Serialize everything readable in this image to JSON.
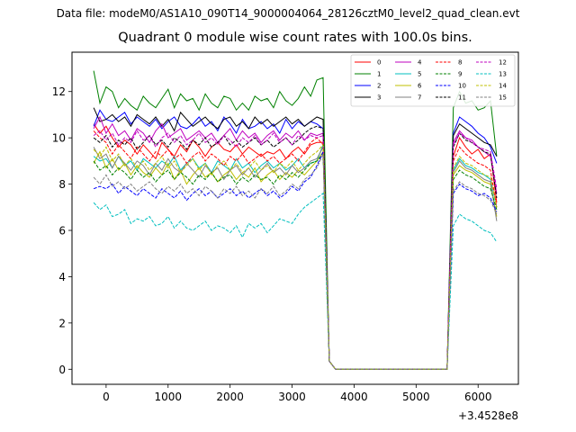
{
  "suptitle": "Data file: modeM0/AS1A10_090T14_9000004064_28126cztM0_level2_quad_clean.evt",
  "chart_data": {
    "type": "line",
    "title": "Quadrant 0 module wise count rates with 100.0s bins.",
    "xlabel": "",
    "ylabel": "",
    "x_offset_label": "+3.4528e8",
    "xlim": [
      -550,
      6650
    ],
    "ylim": [
      -0.65,
      13.7
    ],
    "xticks": [
      0,
      1000,
      2000,
      3000,
      4000,
      5000,
      6000
    ],
    "xtick_labels": [
      "0",
      "1000",
      "2000",
      "3000",
      "4000",
      "5000",
      "6000"
    ],
    "yticks": [
      0,
      2,
      4,
      6,
      8,
      10,
      12
    ],
    "ytick_labels": [
      "0",
      "2",
      "4",
      "6",
      "8",
      "10",
      "12"
    ],
    "grid": false,
    "legend_position": "top-right",
    "x": [
      -200,
      -100,
      0,
      100,
      200,
      300,
      400,
      500,
      600,
      700,
      800,
      900,
      1000,
      1100,
      1200,
      1300,
      1400,
      1500,
      1600,
      1700,
      1800,
      1900,
      2000,
      2100,
      2200,
      2300,
      2400,
      2500,
      2600,
      2700,
      2800,
      2900,
      3000,
      3100,
      3200,
      3300,
      3400,
      3500,
      3600,
      3700,
      3800,
      3900,
      4000,
      4100,
      4200,
      4300,
      4400,
      4500,
      4600,
      4700,
      4800,
      4900,
      5000,
      5100,
      5200,
      5300,
      5400,
      5500,
      5600,
      5700,
      5800,
      5900,
      6000,
      6100,
      6200,
      6300
    ],
    "series": [
      {
        "name": "0",
        "color": "#ff0000",
        "dashed": false,
        "values": [
          10.6,
          10.2,
          10.5,
          10.0,
          9.6,
          9.9,
          9.7,
          9.3,
          9.7,
          9.4,
          9.1,
          9.8,
          9.5,
          9.2,
          9.7,
          9.4,
          9.9,
          9.6,
          9.2,
          9.6,
          9.8,
          9.5,
          9.4,
          9.7,
          9.3,
          9.6,
          9.4,
          9.2,
          9.4,
          9.3,
          9.5,
          9.1,
          9.4,
          9.6,
          9.3,
          9.7,
          9.8,
          9.8,
          0.35,
          0,
          0,
          0,
          0,
          0,
          0,
          0,
          0,
          0,
          0,
          0,
          0,
          0,
          0,
          0,
          0,
          0,
          0,
          0,
          9.2,
          10.0,
          9.6,
          9.3,
          9.5,
          9.1,
          9.3,
          7.2
        ]
      },
      {
        "name": "1",
        "color": "#008000",
        "dashed": false,
        "values": [
          12.9,
          11.5,
          12.2,
          12.0,
          11.3,
          11.7,
          11.4,
          11.2,
          11.8,
          11.5,
          11.3,
          11.7,
          12.1,
          11.3,
          11.9,
          11.6,
          11.7,
          11.2,
          11.9,
          11.5,
          11.3,
          11.8,
          11.7,
          11.2,
          11.5,
          11.2,
          11.8,
          11.6,
          11.7,
          11.3,
          12.0,
          11.6,
          11.4,
          11.7,
          12.2,
          11.8,
          12.5,
          12.6,
          0.35,
          0,
          0,
          0,
          0,
          0,
          0,
          0,
          0,
          0,
          0,
          0,
          0,
          0,
          0,
          0,
          0,
          0,
          0,
          0,
          11.3,
          12.0,
          11.5,
          11.6,
          11.2,
          11.3,
          11.6,
          9.2
        ]
      },
      {
        "name": "2",
        "color": "#0000ff",
        "dashed": false,
        "values": [
          10.5,
          11.2,
          10.8,
          10.7,
          10.9,
          11.1,
          10.6,
          10.9,
          10.7,
          10.5,
          10.8,
          10.4,
          10.7,
          10.9,
          10.5,
          10.4,
          10.6,
          10.9,
          10.5,
          10.7,
          10.3,
          10.9,
          10.6,
          10.2,
          10.8,
          10.4,
          10.5,
          10.7,
          10.4,
          10.6,
          10.2,
          10.8,
          10.4,
          10.7,
          10.5,
          10.7,
          10.6,
          10.4,
          0.35,
          0,
          0,
          0,
          0,
          0,
          0,
          0,
          0,
          0,
          0,
          0,
          0,
          0,
          0,
          0,
          0,
          0,
          0,
          0,
          10.2,
          10.9,
          10.7,
          10.5,
          10.2,
          10.0,
          9.6,
          8.9
        ]
      },
      {
        "name": "3",
        "color": "#000000",
        "dashed": false,
        "values": [
          11.3,
          10.7,
          10.8,
          11.0,
          10.7,
          10.9,
          10.5,
          11.0,
          10.8,
          10.6,
          10.9,
          10.5,
          10.8,
          10.3,
          11.1,
          10.8,
          10.5,
          10.7,
          10.9,
          10.6,
          10.4,
          10.8,
          10.9,
          10.5,
          10.7,
          10.4,
          10.9,
          10.6,
          10.8,
          10.5,
          10.7,
          10.9,
          10.6,
          10.8,
          10.5,
          10.7,
          10.9,
          10.8,
          0.35,
          0,
          0,
          0,
          0,
          0,
          0,
          0,
          0,
          0,
          0,
          0,
          0,
          0,
          0,
          0,
          0,
          0,
          0,
          0,
          10.1,
          10.6,
          10.4,
          10.2,
          10.0,
          9.8,
          9.7,
          9.2
        ]
      },
      {
        "name": "4",
        "color": "#bf00bf",
        "dashed": false,
        "values": [
          10.4,
          10.9,
          10.2,
          10.6,
          10.1,
          10.3,
          9.9,
          10.4,
          10.2,
          9.8,
          10.3,
          10.6,
          10.0,
          10.2,
          10.4,
          9.9,
          10.1,
          10.3,
          10.0,
          10.2,
          9.8,
          10.1,
          10.4,
          9.9,
          10.3,
          10.0,
          10.2,
          9.8,
          10.1,
          10.3,
          9.9,
          10.2,
          10.0,
          10.3,
          9.9,
          10.2,
          10.1,
          10.2,
          0.35,
          0,
          0,
          0,
          0,
          0,
          0,
          0,
          0,
          0,
          0,
          0,
          0,
          0,
          0,
          0,
          0,
          0,
          0,
          0,
          9.8,
          10.3,
          10.0,
          9.9,
          9.6,
          9.4,
          9.2,
          7.6
        ]
      },
      {
        "name": "5",
        "color": "#00bfbf",
        "dashed": false,
        "values": [
          9.2,
          9.0,
          9.1,
          8.7,
          9.2,
          8.8,
          9.0,
          8.6,
          9.1,
          8.9,
          8.7,
          9.0,
          8.8,
          9.2,
          8.6,
          8.9,
          9.1,
          8.7,
          8.9,
          8.5,
          9.0,
          8.8,
          8.6,
          9.1,
          8.7,
          8.9,
          8.5,
          8.8,
          9.0,
          8.7,
          8.9,
          8.6,
          8.8,
          9.1,
          8.7,
          8.9,
          9.0,
          9.7,
          0.35,
          0,
          0,
          0,
          0,
          0,
          0,
          0,
          0,
          0,
          0,
          0,
          0,
          0,
          0,
          0,
          0,
          0,
          0,
          0,
          8.6,
          9.1,
          8.8,
          8.7,
          8.5,
          8.4,
          8.2,
          7.0
        ]
      },
      {
        "name": "6",
        "color": "#bfbf00",
        "dashed": false,
        "values": [
          8.9,
          9.4,
          8.7,
          9.1,
          8.6,
          8.9,
          8.4,
          8.8,
          8.5,
          8.3,
          8.7,
          8.4,
          8.9,
          8.2,
          8.6,
          8.0,
          8.4,
          8.7,
          8.3,
          8.5,
          8.1,
          8.4,
          8.6,
          8.2,
          8.5,
          8.3,
          8.7,
          8.1,
          8.4,
          8.6,
          8.2,
          8.5,
          8.3,
          8.6,
          8.4,
          8.7,
          9.0,
          9.4,
          0.35,
          0,
          0,
          0,
          0,
          0,
          0,
          0,
          0,
          0,
          0,
          0,
          0,
          0,
          0,
          0,
          0,
          0,
          0,
          0,
          8.4,
          8.8,
          8.6,
          8.5,
          8.3,
          8.1,
          8.0,
          6.6
        ]
      },
      {
        "name": "7",
        "color": "#808080",
        "dashed": false,
        "values": [
          9.6,
          9.1,
          9.3,
          8.7,
          9.2,
          8.9,
          8.6,
          9.0,
          8.8,
          8.4,
          8.9,
          8.6,
          9.1,
          8.7,
          8.5,
          8.9,
          8.6,
          8.3,
          8.8,
          8.5,
          8.7,
          8.2,
          8.6,
          8.8,
          8.4,
          8.7,
          8.3,
          8.6,
          8.9,
          8.5,
          8.7,
          8.4,
          8.8,
          8.5,
          8.7,
          9.0,
          9.1,
          9.6,
          0.35,
          0,
          0,
          0,
          0,
          0,
          0,
          0,
          0,
          0,
          0,
          0,
          0,
          0,
          0,
          0,
          0,
          0,
          0,
          0,
          8.5,
          9.0,
          8.7,
          8.6,
          8.4,
          8.2,
          8.1,
          6.4
        ]
      },
      {
        "name": "8",
        "color": "#ff0000",
        "dashed": true,
        "values": [
          10.3,
          10.0,
          9.8,
          9.3,
          9.7,
          9.4,
          9.1,
          9.6,
          9.3,
          9.0,
          9.4,
          9.2,
          9.5,
          9.1,
          9.3,
          8.9,
          9.2,
          9.4,
          9.0,
          9.3,
          9.1,
          8.8,
          9.2,
          9.0,
          9.3,
          8.9,
          9.1,
          9.3,
          9.0,
          9.2,
          8.9,
          9.1,
          9.3,
          9.0,
          9.4,
          9.8,
          10.0,
          9.7,
          0.35,
          0,
          0,
          0,
          0,
          0,
          0,
          0,
          0,
          0,
          0,
          0,
          0,
          0,
          0,
          0,
          0,
          0,
          0,
          0,
          9.0,
          9.6,
          9.3,
          9.1,
          8.9,
          8.8,
          8.6,
          7.0
        ]
      },
      {
        "name": "9",
        "color": "#008000",
        "dashed": true,
        "values": [
          9.0,
          8.6,
          8.8,
          8.4,
          8.7,
          8.5,
          8.2,
          8.6,
          8.3,
          8.5,
          8.1,
          8.4,
          8.6,
          8.2,
          8.5,
          8.3,
          8.0,
          8.4,
          8.2,
          8.5,
          8.1,
          8.3,
          8.4,
          8.0,
          8.3,
          8.1,
          8.4,
          8.2,
          8.3,
          8.0,
          8.4,
          8.2,
          8.5,
          8.3,
          8.6,
          8.9,
          9.0,
          9.3,
          0.35,
          0,
          0,
          0,
          0,
          0,
          0,
          0,
          0,
          0,
          0,
          0,
          0,
          0,
          0,
          0,
          0,
          0,
          0,
          0,
          8.2,
          8.6,
          8.4,
          8.3,
          8.1,
          7.9,
          7.8,
          6.9
        ]
      },
      {
        "name": "10",
        "color": "#0000ff",
        "dashed": true,
        "values": [
          7.8,
          7.9,
          7.8,
          8.0,
          7.6,
          7.9,
          7.7,
          7.5,
          7.8,
          7.6,
          7.4,
          7.8,
          7.6,
          7.4,
          7.7,
          7.3,
          7.6,
          7.8,
          7.5,
          7.7,
          7.4,
          7.6,
          7.8,
          7.5,
          7.7,
          7.4,
          7.6,
          7.8,
          7.5,
          7.7,
          7.4,
          7.6,
          7.9,
          7.7,
          8.1,
          8.3,
          8.8,
          9.4,
          0.35,
          0,
          0,
          0,
          0,
          0,
          0,
          0,
          0,
          0,
          0,
          0,
          0,
          0,
          0,
          0,
          0,
          0,
          0,
          0,
          7.6,
          8.0,
          7.8,
          7.7,
          7.5,
          7.6,
          7.4,
          6.8
        ]
      },
      {
        "name": "11",
        "color": "#000000",
        "dashed": true,
        "values": [
          10.0,
          9.8,
          10.1,
          9.6,
          9.9,
          9.7,
          10.0,
          9.5,
          9.8,
          10.1,
          9.7,
          9.9,
          9.6,
          10.0,
          9.8,
          9.5,
          9.9,
          9.7,
          10.0,
          9.6,
          9.8,
          10.1,
          9.7,
          9.9,
          9.6,
          9.8,
          10.0,
          9.7,
          9.9,
          9.6,
          9.8,
          10.0,
          9.7,
          9.9,
          10.2,
          10.4,
          10.5,
          10.4,
          0.35,
          0,
          0,
          0,
          0,
          0,
          0,
          0,
          0,
          0,
          0,
          0,
          0,
          0,
          0,
          0,
          0,
          0,
          0,
          0,
          9.6,
          10.2,
          9.9,
          9.8,
          9.6,
          9.4,
          9.3,
          7.4
        ]
      },
      {
        "name": "12",
        "color": "#bf00bf",
        "dashed": true,
        "values": [
          10.1,
          10.3,
          9.9,
          10.2,
          9.7,
          10.0,
          9.8,
          10.3,
          9.9,
          10.1,
          9.6,
          10.0,
          10.2,
          9.8,
          10.1,
          9.7,
          9.9,
          10.2,
          9.8,
          10.0,
          9.7,
          10.1,
          9.9,
          9.6,
          10.0,
          9.8,
          10.1,
          9.7,
          9.9,
          10.2,
          9.8,
          10.0,
          9.7,
          10.1,
          9.9,
          10.1,
          10.0,
          10.1,
          0.35,
          0,
          0,
          0,
          0,
          0,
          0,
          0,
          0,
          0,
          0,
          0,
          0,
          0,
          0,
          0,
          0,
          0,
          0,
          0,
          9.7,
          10.2,
          10.0,
          9.8,
          9.6,
          9.5,
          9.4,
          7.8
        ]
      },
      {
        "name": "13",
        "color": "#00bfbf",
        "dashed": true,
        "values": [
          7.2,
          6.9,
          7.1,
          6.6,
          6.7,
          6.9,
          6.3,
          6.5,
          6.4,
          6.6,
          6.2,
          6.3,
          6.6,
          6.1,
          6.4,
          6.1,
          6.0,
          6.2,
          6.4,
          6.0,
          6.2,
          6.1,
          5.9,
          6.2,
          5.7,
          6.3,
          6.1,
          6.3,
          5.9,
          6.2,
          6.5,
          6.4,
          6.3,
          6.7,
          7.0,
          7.2,
          7.4,
          7.6,
          0.35,
          0,
          0,
          0,
          0,
          0,
          0,
          0,
          0,
          0,
          0,
          0,
          0,
          0,
          0,
          0,
          0,
          0,
          0,
          0,
          6.2,
          6.7,
          6.5,
          6.4,
          6.2,
          6.0,
          5.9,
          5.5
        ]
      },
      {
        "name": "14",
        "color": "#bfbf00",
        "dashed": true,
        "values": [
          9.5,
          9.2,
          9.6,
          9.0,
          9.3,
          8.8,
          9.1,
          8.7,
          9.0,
          8.6,
          8.9,
          9.2,
          8.7,
          9.0,
          8.5,
          8.8,
          9.1,
          8.6,
          8.9,
          8.4,
          8.8,
          9.0,
          8.6,
          8.9,
          8.5,
          8.7,
          9.0,
          8.6,
          8.8,
          8.5,
          8.9,
          8.7,
          9.0,
          8.6,
          8.9,
          9.2,
          9.4,
          9.7,
          0.35,
          0,
          0,
          0,
          0,
          0,
          0,
          0,
          0,
          0,
          0,
          0,
          0,
          0,
          0,
          0,
          0,
          0,
          0,
          0,
          8.7,
          9.2,
          8.9,
          8.8,
          8.6,
          8.4,
          8.3,
          7.0
        ]
      },
      {
        "name": "15",
        "color": "#808080",
        "dashed": true,
        "values": [
          8.3,
          8.0,
          8.4,
          7.9,
          8.1,
          7.8,
          8.0,
          7.7,
          7.9,
          8.1,
          7.8,
          7.6,
          7.9,
          7.7,
          8.0,
          7.6,
          7.8,
          7.5,
          7.9,
          7.7,
          7.4,
          7.8,
          7.6,
          7.9,
          7.5,
          7.7,
          7.4,
          7.8,
          7.6,
          7.9,
          7.5,
          7.7,
          8.0,
          7.8,
          8.2,
          8.4,
          8.7,
          9.3,
          0.35,
          0,
          0,
          0,
          0,
          0,
          0,
          0,
          0,
          0,
          0,
          0,
          0,
          0,
          0,
          0,
          0,
          0,
          0,
          0,
          7.7,
          8.1,
          7.9,
          7.8,
          7.6,
          7.5,
          7.3,
          6.7
        ]
      }
    ]
  }
}
